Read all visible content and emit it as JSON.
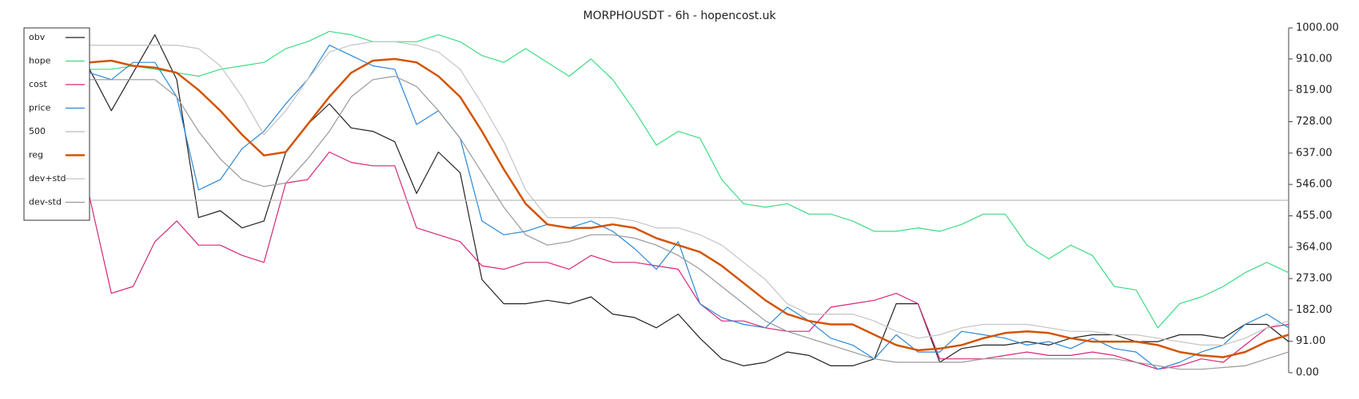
{
  "chart_data": {
    "type": "line",
    "title": "MORPHOUSDT - 6h - hopencost.uk",
    "ylim": [
      0,
      1000
    ],
    "yticks": [
      {
        "value": 0,
        "label": "0.00"
      },
      {
        "value": 91,
        "label": "91.00"
      },
      {
        "value": 182,
        "label": "182.00"
      },
      {
        "value": 273,
        "label": "273.00"
      },
      {
        "value": 364,
        "label": "364.00"
      },
      {
        "value": 455,
        "label": "455.00"
      },
      {
        "value": 546,
        "label": "546.00"
      },
      {
        "value": 637,
        "label": "637.00"
      },
      {
        "value": 728,
        "label": "728.00"
      },
      {
        "value": 819,
        "label": "819.00"
      },
      {
        "value": 910,
        "label": "910.00"
      },
      {
        "value": 1000,
        "label": "1000.00"
      }
    ],
    "y_axis_side": "right",
    "legend": "top-left",
    "grid": false,
    "series": [
      {
        "name": "obv",
        "color": "#222222",
        "values": [
          880,
          760,
          870,
          980,
          850,
          450,
          470,
          420,
          440,
          640,
          720,
          780,
          710,
          700,
          670,
          520,
          640,
          580,
          270,
          200,
          200,
          210,
          200,
          220,
          170,
          160,
          130,
          170,
          100,
          40,
          20,
          30,
          60,
          50,
          20,
          20,
          40,
          200,
          200,
          30,
          70,
          80,
          80,
          90,
          80,
          100,
          110,
          110,
          90,
          90,
          110,
          110,
          100,
          140,
          140,
          90
        ]
      },
      {
        "name": "hope",
        "color": "#3ddc84",
        "values": [
          880,
          880,
          890,
          880,
          870,
          860,
          880,
          890,
          900,
          940,
          960,
          990,
          980,
          960,
          960,
          960,
          980,
          960,
          920,
          900,
          940,
          900,
          860,
          910,
          850,
          760,
          660,
          700,
          680,
          560,
          490,
          480,
          490,
          460,
          460,
          440,
          410,
          410,
          420,
          410,
          430,
          460,
          460,
          370,
          330,
          370,
          340,
          250,
          240,
          130,
          200,
          220,
          250,
          290,
          320,
          290
        ]
      },
      {
        "name": "cost",
        "color": "#d6267a",
        "values": [
          510,
          230,
          250,
          380,
          440,
          370,
          370,
          340,
          320,
          550,
          560,
          640,
          610,
          600,
          600,
          420,
          400,
          380,
          310,
          300,
          320,
          320,
          300,
          340,
          320,
          320,
          310,
          300,
          200,
          150,
          150,
          130,
          120,
          120,
          190,
          200,
          210,
          230,
          200,
          40,
          40,
          40,
          50,
          60,
          50,
          50,
          60,
          50,
          30,
          10,
          20,
          40,
          30,
          80,
          130,
          140
        ]
      },
      {
        "name": "price",
        "color": "#2a88d8",
        "values": [
          870,
          850,
          900,
          900,
          800,
          530,
          560,
          650,
          700,
          780,
          850,
          950,
          920,
          890,
          880,
          720,
          760,
          680,
          440,
          400,
          410,
          430,
          420,
          440,
          410,
          360,
          300,
          380,
          200,
          160,
          140,
          130,
          190,
          150,
          100,
          80,
          40,
          110,
          60,
          60,
          120,
          110,
          100,
          80,
          90,
          70,
          100,
          70,
          60,
          10,
          30,
          60,
          80,
          140,
          170,
          130
        ]
      },
      {
        "name": "500",
        "color": "#bbbbbb",
        "values": [
          500,
          500,
          500,
          500,
          500,
          500,
          500,
          500,
          500,
          500,
          500,
          500,
          500,
          500,
          500,
          500,
          500,
          500,
          500,
          500,
          500,
          500,
          500,
          500,
          500,
          500,
          500,
          500,
          500,
          500,
          500,
          500,
          500,
          500,
          500,
          500,
          500,
          500,
          500,
          500,
          500,
          500,
          500,
          500,
          500,
          500,
          500,
          500,
          500,
          500,
          500,
          500,
          500,
          500,
          500,
          500
        ]
      },
      {
        "name": "reg",
        "color": "#d35400",
        "width": 2.5,
        "values": [
          900,
          905,
          890,
          885,
          870,
          820,
          760,
          690,
          630,
          640,
          720,
          800,
          870,
          905,
          910,
          900,
          860,
          800,
          700,
          590,
          490,
          430,
          420,
          420,
          430,
          420,
          390,
          370,
          350,
          310,
          260,
          210,
          170,
          150,
          140,
          140,
          110,
          80,
          65,
          70,
          80,
          100,
          115,
          120,
          115,
          100,
          90,
          90,
          90,
          80,
          60,
          50,
          45,
          60,
          90,
          110
        ]
      },
      {
        "name": "dev+std",
        "color": "#c4c4c4",
        "values": [
          950,
          950,
          950,
          950,
          950,
          940,
          890,
          800,
          690,
          760,
          850,
          930,
          950,
          960,
          960,
          950,
          930,
          880,
          780,
          670,
          530,
          450,
          450,
          450,
          450,
          440,
          420,
          420,
          400,
          370,
          320,
          270,
          200,
          170,
          170,
          170,
          150,
          120,
          100,
          110,
          130,
          140,
          140,
          140,
          130,
          120,
          120,
          110,
          110,
          100,
          90,
          80,
          80,
          100,
          130,
          150
        ]
      },
      {
        "name": "dev-std",
        "color": "#999999",
        "values": [
          850,
          850,
          850,
          850,
          800,
          700,
          620,
          560,
          540,
          550,
          620,
          700,
          800,
          850,
          860,
          830,
          760,
          680,
          580,
          480,
          400,
          370,
          380,
          400,
          400,
          390,
          370,
          340,
          300,
          250,
          200,
          150,
          120,
          100,
          80,
          60,
          40,
          30,
          30,
          30,
          30,
          40,
          40,
          40,
          40,
          40,
          40,
          40,
          30,
          20,
          10,
          10,
          15,
          20,
          40,
          60
        ]
      }
    ]
  }
}
